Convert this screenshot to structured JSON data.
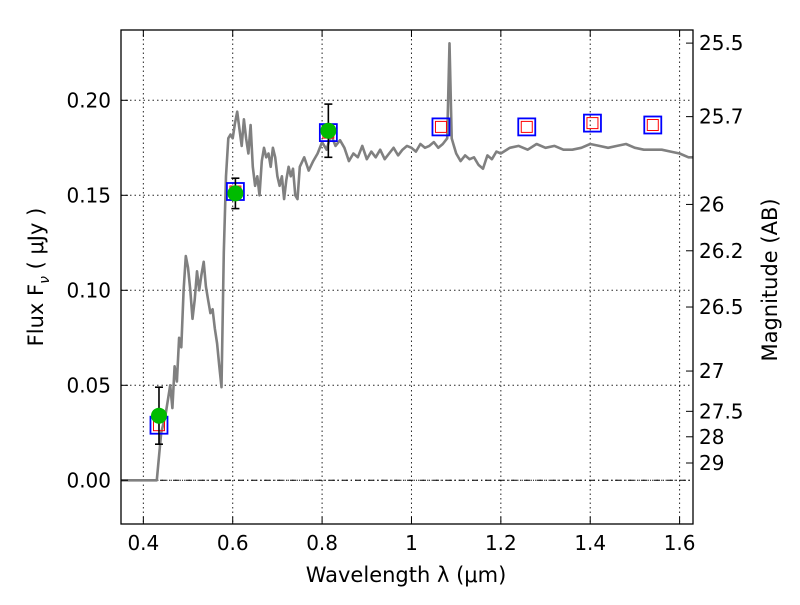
{
  "chart_data": {
    "type": "scatter",
    "xlabel": "Wavelength  λ (μm)",
    "ylabel": "Flux  F",
    "ylabel_sub": "ν",
    "ylabel_unit": "  ( μJy )",
    "y2label": "Magnitude (AB)",
    "xlim": [
      0.35,
      1.63
    ],
    "ylim": [
      -0.023,
      0.237
    ],
    "grid": true,
    "x_ticks": [
      0.4,
      0.6,
      0.8,
      1.0,
      1.2,
      1.4,
      1.6
    ],
    "x_tick_labels": [
      "0.4",
      "0.6",
      "0.8",
      "1",
      "1.2",
      "1.4",
      "1.6"
    ],
    "y_ticks": [
      0.0,
      0.05,
      0.1,
      0.15,
      0.2
    ],
    "y_tick_labels": [
      "0.00",
      "0.05",
      "0.10",
      "0.15",
      "0.20"
    ],
    "y2_ticks": [
      {
        "label": "25.5",
        "flux": 0.2301
      },
      {
        "label": "25.7",
        "flux": 0.1914
      },
      {
        "label": "26",
        "flux": 0.1452
      },
      {
        "label": "26.2",
        "flux": 0.1208
      },
      {
        "label": "26.5",
        "flux": 0.0912
      },
      {
        "label": "27",
        "flux": 0.0575
      },
      {
        "label": "27.5",
        "flux": 0.0363
      },
      {
        "label": "28",
        "flux": 0.0229
      },
      {
        "label": "29",
        "flux": 0.0091
      }
    ],
    "zero_line": 0.0,
    "colors": {
      "model": "#808080",
      "observed": "#00bb00",
      "model_box_outer": "#0000ff",
      "model_box_inner": "#ff0000",
      "errorbar": "#000000"
    },
    "series": [
      {
        "kind": "line",
        "x": [
          0.35,
          0.43,
          0.44,
          0.45,
          0.46,
          0.465,
          0.47,
          0.475,
          0.48,
          0.485,
          0.49,
          0.495,
          0.5,
          0.505,
          0.51,
          0.515,
          0.52,
          0.525,
          0.53,
          0.535,
          0.54,
          0.545,
          0.55,
          0.555,
          0.56,
          0.565,
          0.57,
          0.575,
          0.58,
          0.585,
          0.59,
          0.595,
          0.6,
          0.605,
          0.61,
          0.615,
          0.62,
          0.625,
          0.63,
          0.635,
          0.64,
          0.645,
          0.65,
          0.655,
          0.66,
          0.665,
          0.67,
          0.675,
          0.68,
          0.685,
          0.69,
          0.695,
          0.7,
          0.705,
          0.71,
          0.715,
          0.72,
          0.725,
          0.73,
          0.735,
          0.74,
          0.745,
          0.75,
          0.76,
          0.77,
          0.78,
          0.79,
          0.8,
          0.81,
          0.82,
          0.83,
          0.84,
          0.85,
          0.86,
          0.87,
          0.88,
          0.89,
          0.9,
          0.91,
          0.92,
          0.93,
          0.94,
          0.95,
          0.96,
          0.97,
          0.98,
          0.99,
          1.0,
          1.01,
          1.02,
          1.03,
          1.04,
          1.05,
          1.06,
          1.07,
          1.08,
          1.085,
          1.09,
          1.095,
          1.1,
          1.11,
          1.12,
          1.13,
          1.14,
          1.15,
          1.16,
          1.17,
          1.18,
          1.19,
          1.2,
          1.22,
          1.24,
          1.26,
          1.28,
          1.3,
          1.32,
          1.34,
          1.36,
          1.38,
          1.4,
          1.42,
          1.44,
          1.46,
          1.48,
          1.5,
          1.52,
          1.54,
          1.56,
          1.58,
          1.6,
          1.62,
          1.63
        ],
        "y": [
          0.0,
          0.0,
          0.025,
          0.035,
          0.05,
          0.038,
          0.06,
          0.052,
          0.075,
          0.07,
          0.1,
          0.118,
          0.112,
          0.1,
          0.085,
          0.095,
          0.11,
          0.1,
          0.108,
          0.115,
          0.102,
          0.095,
          0.088,
          0.09,
          0.08,
          0.072,
          0.06,
          0.049,
          0.12,
          0.16,
          0.18,
          0.182,
          0.18,
          0.188,
          0.194,
          0.185,
          0.176,
          0.19,
          0.18,
          0.172,
          0.187,
          0.165,
          0.155,
          0.16,
          0.15,
          0.168,
          0.175,
          0.17,
          0.172,
          0.165,
          0.175,
          0.17,
          0.16,
          0.155,
          0.16,
          0.148,
          0.158,
          0.165,
          0.16,
          0.164,
          0.15,
          0.148,
          0.165,
          0.17,
          0.163,
          0.168,
          0.172,
          0.178,
          0.174,
          0.182,
          0.176,
          0.179,
          0.175,
          0.168,
          0.172,
          0.17,
          0.176,
          0.169,
          0.173,
          0.17,
          0.174,
          0.169,
          0.172,
          0.175,
          0.171,
          0.174,
          0.176,
          0.175,
          0.173,
          0.177,
          0.175,
          0.176,
          0.178,
          0.175,
          0.177,
          0.18,
          0.23,
          0.18,
          0.176,
          0.172,
          0.168,
          0.171,
          0.169,
          0.17,
          0.166,
          0.164,
          0.171,
          0.169,
          0.173,
          0.172,
          0.175,
          0.176,
          0.174,
          0.177,
          0.175,
          0.176,
          0.174,
          0.174,
          0.175,
          0.177,
          0.176,
          0.175,
          0.176,
          0.177,
          0.175,
          0.174,
          0.174,
          0.174,
          0.173,
          0.172,
          0.17,
          0.17
        ]
      },
      {
        "kind": "model_photometry",
        "x": [
          0.435,
          0.606,
          0.814,
          1.066,
          1.258,
          1.405,
          1.54
        ],
        "y": [
          0.029,
          0.152,
          0.183,
          0.186,
          0.186,
          0.188,
          0.187
        ]
      },
      {
        "kind": "observed",
        "x": [
          0.435,
          0.606,
          0.814
        ],
        "y": [
          0.034,
          0.151,
          0.184
        ],
        "err": [
          0.015,
          0.008,
          0.014
        ]
      }
    ]
  }
}
